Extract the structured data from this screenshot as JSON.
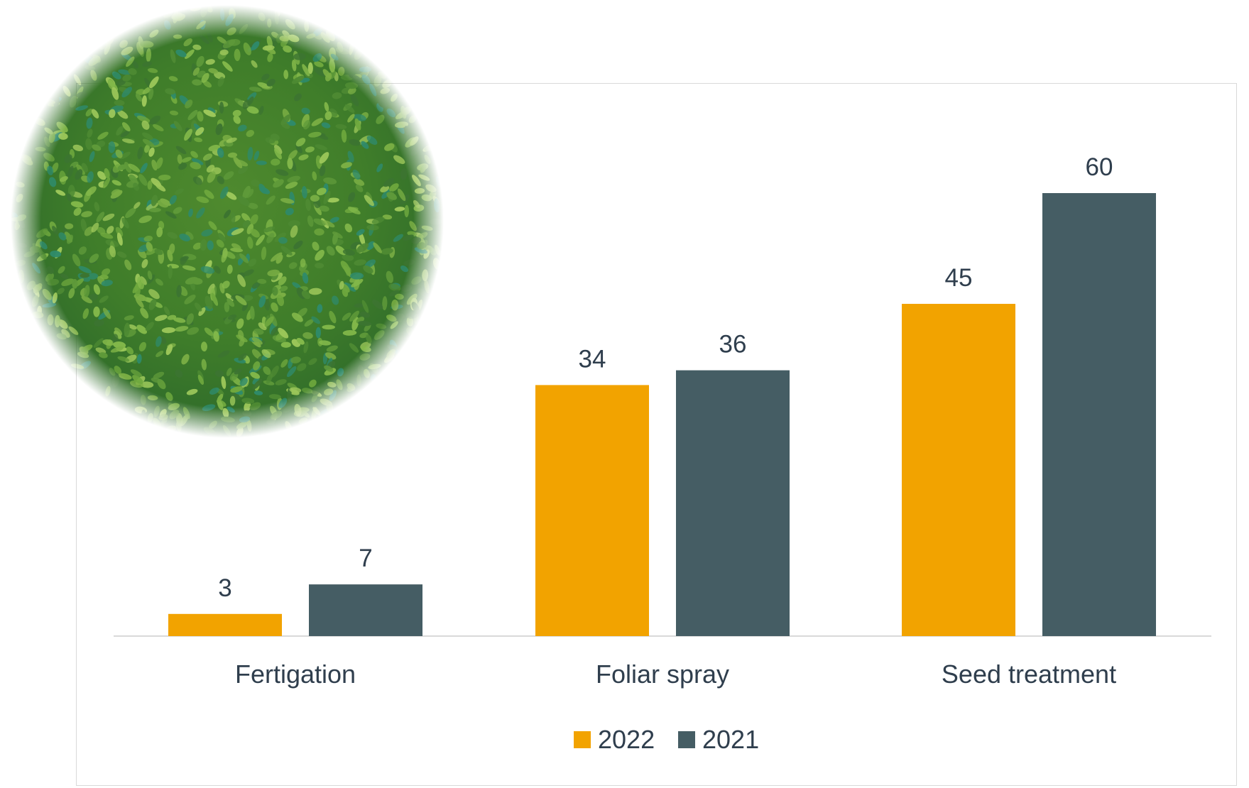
{
  "chart_data": {
    "type": "bar",
    "title": "",
    "xlabel": "",
    "ylabel": "",
    "categories": [
      "Fertigation",
      "Foliar spray",
      "Seed treatment"
    ],
    "series": [
      {
        "name": "2022",
        "values": [
          3,
          34,
          45
        ],
        "color": "#f2a300"
      },
      {
        "name": "2021",
        "values": [
          7,
          36,
          60
        ],
        "color": "#455d64"
      }
    ],
    "ylim": [
      0,
      60
    ],
    "grid": false,
    "legend_position": "bottom",
    "data_labels": true
  },
  "decoration": {
    "photo_icon": "green-seed-grains-photo"
  }
}
